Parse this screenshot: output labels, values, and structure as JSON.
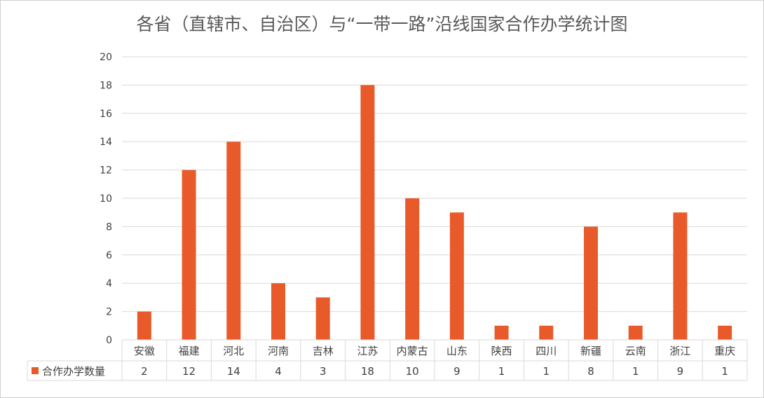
{
  "chart_data": {
    "type": "bar",
    "title": "各省（直辖市、自治区）与“一带一路”沿线国家合作办学统计图",
    "xlabel": "",
    "ylabel": "",
    "ylim": [
      0,
      20
    ],
    "yticks": [
      0,
      2,
      4,
      6,
      8,
      10,
      12,
      14,
      16,
      18,
      20
    ],
    "grid": true,
    "legend": "bottom-left (data table)",
    "categories": [
      "安徽",
      "福建",
      "河北",
      "河南",
      "吉林",
      "江苏",
      "内蒙古",
      "山东",
      "陕西",
      "四川",
      "新疆",
      "云南",
      "浙江",
      "重庆"
    ],
    "series": [
      {
        "name": "合作办学数量",
        "color": "#e95a2b",
        "values": [
          2,
          12,
          14,
          4,
          3,
          18,
          10,
          9,
          1,
          1,
          8,
          1,
          9,
          1
        ]
      }
    ]
  }
}
